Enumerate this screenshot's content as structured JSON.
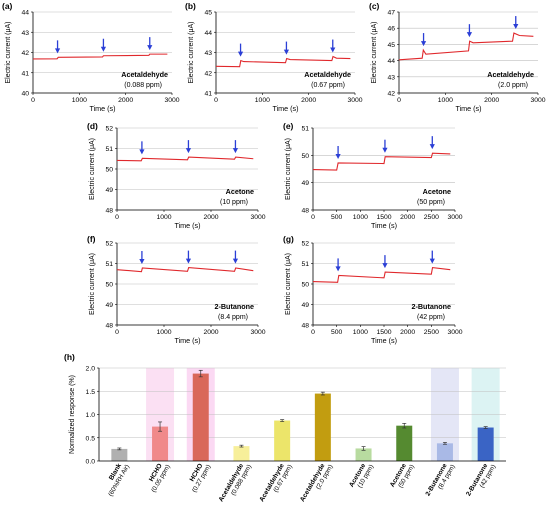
{
  "colors": {
    "trace": "#e0282c",
    "arrow": "#2b3fd6",
    "axis": "#000000",
    "grid": "#bfbfbf"
  },
  "chart_data": [
    {
      "panel": "(a)",
      "type": "line",
      "xlabel": "Time (s)",
      "ylabel": "Electric current (μA)",
      "xlim": [
        0,
        3000
      ],
      "ylim": [
        40,
        44
      ],
      "xticks": [
        0,
        1000,
        2000,
        3000
      ],
      "yticks": [
        40,
        41,
        42,
        43,
        44
      ],
      "annotation": [
        "Acetaldehyde",
        "(0.088 ppm)"
      ],
      "arrows_x": [
        530,
        1520,
        2520
      ],
      "series": [
        {
          "points": [
            [
              0,
              41.68
            ],
            [
              520,
              41.69
            ],
            [
              545,
              41.76
            ],
            [
              1500,
              41.78
            ],
            [
              1520,
              41.84
            ],
            [
              2500,
              41.86
            ],
            [
              2520,
              41.92
            ],
            [
              2900,
              41.92
            ]
          ]
        }
      ]
    },
    {
      "panel": "(b)",
      "type": "line",
      "xlabel": "Time (s)",
      "ylabel": "Electric current (μA)",
      "xlim": [
        0,
        3000
      ],
      "ylim": [
        41,
        45
      ],
      "xticks": [
        0,
        1000,
        2000,
        3000
      ],
      "yticks": [
        41,
        42,
        43,
        44,
        45
      ],
      "annotation": [
        "Acetaldehyde",
        "(0.67 ppm)"
      ],
      "arrows_x": [
        530,
        1520,
        2520
      ],
      "series": [
        {
          "points": [
            [
              0,
              42.32
            ],
            [
              510,
              42.3
            ],
            [
              535,
              42.6
            ],
            [
              600,
              42.55
            ],
            [
              1500,
              42.5
            ],
            [
              1525,
              42.7
            ],
            [
              1600,
              42.65
            ],
            [
              2500,
              42.6
            ],
            [
              2525,
              42.8
            ],
            [
              2600,
              42.72
            ],
            [
              2900,
              42.7
            ]
          ]
        }
      ]
    },
    {
      "panel": "(c)",
      "type": "line",
      "xlabel": "Time (s)",
      "ylabel": "Electric current (μA)",
      "xlim": [
        0,
        3000
      ],
      "ylim": [
        42,
        47
      ],
      "xticks": [
        0,
        1000,
        2000,
        3000
      ],
      "yticks": [
        42,
        43,
        44,
        45,
        46,
        47
      ],
      "annotation": [
        "Acetaldehyde",
        "(2.0 ppm)"
      ],
      "arrows_x": [
        530,
        1520,
        2520
      ],
      "series": [
        {
          "points": [
            [
              0,
              44.05
            ],
            [
              500,
              44.15
            ],
            [
              525,
              44.65
            ],
            [
              580,
              44.4
            ],
            [
              1500,
              44.6
            ],
            [
              1525,
              45.2
            ],
            [
              1600,
              45.1
            ],
            [
              2450,
              45.2
            ],
            [
              2480,
              45.7
            ],
            [
              2600,
              45.55
            ],
            [
              2900,
              45.5
            ]
          ]
        }
      ]
    },
    {
      "panel": "(d)",
      "type": "line",
      "xlabel": "Time (s)",
      "ylabel": "Electric current (μA)",
      "xlim": [
        0,
        3000
      ],
      "ylim": [
        48,
        52
      ],
      "xticks": [
        0,
        1000,
        2000,
        3000
      ],
      "yticks": [
        48,
        49,
        50,
        51,
        52
      ],
      "annotation": [
        "Acetone",
        "(10 ppm)"
      ],
      "arrows_x": [
        530,
        1520,
        2520
      ],
      "series": [
        {
          "points": [
            [
              0,
              50.42
            ],
            [
              515,
              50.4
            ],
            [
              540,
              50.52
            ],
            [
              1500,
              50.45
            ],
            [
              1525,
              50.58
            ],
            [
              2500,
              50.48
            ],
            [
              2525,
              50.58
            ],
            [
              2900,
              50.5
            ]
          ]
        }
      ]
    },
    {
      "panel": "(e)",
      "type": "line",
      "xlabel": "Time (s)",
      "ylabel": "Electric current (μA)",
      "xlim": [
        0,
        3000
      ],
      "ylim": [
        48,
        51
      ],
      "xticks": [
        0,
        500,
        1000,
        1500,
        2000,
        2500,
        3000
      ],
      "yticks": [
        48,
        49,
        50,
        51
      ],
      "annotation": [
        "Acetone",
        "(50 ppm)"
      ],
      "arrows_x": [
        530,
        1520,
        2520
      ],
      "series": [
        {
          "points": [
            [
              0,
              49.48
            ],
            [
              500,
              49.46
            ],
            [
              530,
              49.72
            ],
            [
              1500,
              49.7
            ],
            [
              1525,
              49.95
            ],
            [
              2500,
              49.92
            ],
            [
              2525,
              50.08
            ],
            [
              2900,
              50.05
            ]
          ]
        }
      ]
    },
    {
      "panel": "(f)",
      "type": "line",
      "xlabel": "Time (s)",
      "ylabel": "Electric current (μA)",
      "xlim": [
        0,
        3000
      ],
      "ylim": [
        48,
        52
      ],
      "xticks": [
        0,
        1000,
        2000,
        3000
      ],
      "yticks": [
        48,
        49,
        50,
        51,
        52
      ],
      "annotation": [
        "2-Butanone",
        "(8.4 ppm)"
      ],
      "arrows_x": [
        530,
        1520,
        2520
      ],
      "series": [
        {
          "points": [
            [
              0,
              50.7
            ],
            [
              520,
              50.6
            ],
            [
              540,
              50.78
            ],
            [
              1500,
              50.62
            ],
            [
              1525,
              50.8
            ],
            [
              2500,
              50.62
            ],
            [
              2525,
              50.78
            ],
            [
              2900,
              50.65
            ]
          ]
        }
      ]
    },
    {
      "panel": "(g)",
      "type": "line",
      "xlabel": "Time (s)",
      "ylabel": "Electric current (μA)",
      "xlim": [
        0,
        3000
      ],
      "ylim": [
        48,
        52
      ],
      "xticks": [
        0,
        500,
        1000,
        1500,
        2000,
        2500,
        3000
      ],
      "yticks": [
        48,
        49,
        50,
        51,
        52
      ],
      "annotation": [
        "2-Butanone",
        "(42 ppm)"
      ],
      "arrows_x": [
        530,
        1520,
        2520
      ],
      "series": [
        {
          "points": [
            [
              0,
              50.12
            ],
            [
              520,
              50.08
            ],
            [
              545,
              50.42
            ],
            [
              1500,
              50.3
            ],
            [
              1525,
              50.58
            ],
            [
              2500,
              50.48
            ],
            [
              2525,
              50.8
            ],
            [
              2900,
              50.7
            ]
          ]
        }
      ]
    },
    {
      "panel": "(h)",
      "type": "bar",
      "ylabel": "Normalized response (%)",
      "ylim": [
        0,
        2.0
      ],
      "yticks": [
        0.0,
        0.5,
        1.0,
        1.5,
        2.0
      ],
      "categories": [
        [
          "Blank",
          "(60%RH Air)"
        ],
        [
          "HCHO",
          "(0.05 ppm)"
        ],
        [
          "HCHO",
          "(0.27 ppm)"
        ],
        [
          "Acetaldehyde",
          "(0.088 ppm)"
        ],
        [
          "Acetaldehyde",
          "(0.67 ppm)"
        ],
        [
          "Acetaldehyde",
          "(2.0 ppm)"
        ],
        [
          "Acetone",
          "(10 ppm)"
        ],
        [
          "Acetone",
          "(50 ppm)"
        ],
        [
          "2-Butanone",
          "(8.4 ppm)"
        ],
        [
          "2-Butanone",
          "(42 ppm)"
        ]
      ],
      "values": [
        0.26,
        0.74,
        1.88,
        0.32,
        0.87,
        1.45,
        0.27,
        0.76,
        0.38,
        0.72
      ],
      "errors": [
        0.02,
        0.1,
        0.07,
        0.02,
        0.02,
        0.03,
        0.04,
        0.05,
        0.02,
        0.02
      ],
      "colors": [
        "#b0b0b0",
        "#f0898a",
        "#d9685a",
        "#f7ef9a",
        "#ece56a",
        "#c29d10",
        "#b8dba0",
        "#558a30",
        "#a9b9e6",
        "#3a64c5"
      ],
      "shading": [
        "",
        "#fbe0f3",
        "#fbd9f3",
        "",
        "",
        "",
        "",
        "",
        "#e4e6f6",
        "#dcf3f3"
      ]
    }
  ]
}
